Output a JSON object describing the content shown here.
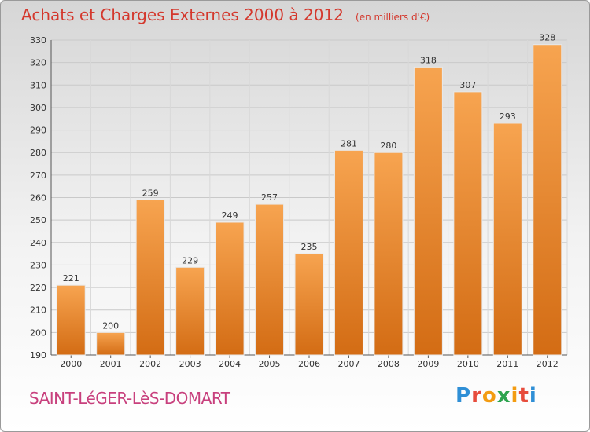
{
  "header": {
    "title": "Achats et Charges Externes 2000 à 2012",
    "unit": "(en milliers d'€)"
  },
  "footer": {
    "commune": "SAINT-LéGER-LèS-DOMART",
    "brand": "Proxiti",
    "brand_colors": [
      "#2f8fd6",
      "#e74c3c",
      "#f39c12",
      "#2ea44f",
      "#f39c12",
      "#e74c3c",
      "#2f8fd6"
    ]
  },
  "colors": {
    "bar_top": "#f7a450",
    "bar_bottom": "#d36c14",
    "title": "#d4382d",
    "commune": "#c8407d"
  },
  "chart_data": {
    "type": "bar",
    "categories": [
      "2000",
      "2001",
      "2002",
      "2003",
      "2004",
      "2005",
      "2006",
      "2007",
      "2008",
      "2009",
      "2010",
      "2011",
      "2012"
    ],
    "values": [
      221,
      200,
      259,
      229,
      249,
      257,
      235,
      281,
      280,
      318,
      307,
      293,
      328
    ],
    "ylim": [
      190,
      330
    ],
    "yticks": [
      190,
      200,
      210,
      220,
      230,
      240,
      250,
      260,
      270,
      280,
      290,
      300,
      310,
      320,
      330
    ],
    "grid": true
  }
}
